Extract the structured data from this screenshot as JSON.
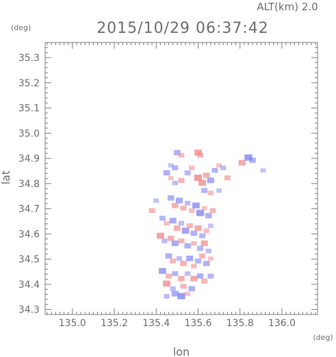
{
  "chart_data": {
    "type": "scatter",
    "title": "2015/10/29 06:37:42",
    "altitude_label": "ALT(km) 2.0",
    "xlabel": "lon",
    "ylabel": "lat",
    "x_unit": "(deg)",
    "y_unit": "(deg)",
    "xlim": [
      134.87,
      136.17
    ],
    "ylim": [
      34.28,
      35.36
    ],
    "x_ticks": [
      "135.0",
      "135.2",
      "135.4",
      "135.6",
      "135.8",
      "136.0"
    ],
    "y_ticks": [
      "34.3",
      "34.4",
      "34.5",
      "34.6",
      "34.7",
      "34.8",
      "34.9",
      "35.0",
      "35.1",
      "35.2",
      "35.3"
    ],
    "grid": false,
    "colors": {
      "axis": "#7a7a7a",
      "positive": "#f08a8a",
      "negative": "#8a8af2"
    },
    "points": [
      {
        "lon": 135.5,
        "lat": 34.92,
        "v": -0.6
      },
      {
        "lon": 135.52,
        "lat": 34.91,
        "v": 0.4
      },
      {
        "lon": 135.6,
        "lat": 34.92,
        "v": 0.8
      },
      {
        "lon": 135.61,
        "lat": 34.91,
        "v": 0.5
      },
      {
        "lon": 135.47,
        "lat": 34.87,
        "v": -0.3
      },
      {
        "lon": 135.49,
        "lat": 34.86,
        "v": -0.5
      },
      {
        "lon": 135.45,
        "lat": 34.84,
        "v": -0.6
      },
      {
        "lon": 135.47,
        "lat": 34.82,
        "v": 0.3
      },
      {
        "lon": 135.49,
        "lat": 34.8,
        "v": -0.4
      },
      {
        "lon": 135.52,
        "lat": 34.81,
        "v": 0.5
      },
      {
        "lon": 135.55,
        "lat": 34.84,
        "v": -0.5
      },
      {
        "lon": 135.57,
        "lat": 34.86,
        "v": 0.4
      },
      {
        "lon": 135.6,
        "lat": 34.82,
        "v": 0.9
      },
      {
        "lon": 135.62,
        "lat": 34.8,
        "v": 0.8
      },
      {
        "lon": 135.64,
        "lat": 34.83,
        "v": 0.6
      },
      {
        "lon": 135.66,
        "lat": 34.81,
        "v": -0.7
      },
      {
        "lon": 135.68,
        "lat": 34.85,
        "v": -0.5
      },
      {
        "lon": 135.7,
        "lat": 34.87,
        "v": 0.3
      },
      {
        "lon": 135.72,
        "lat": 34.86,
        "v": -0.4
      },
      {
        "lon": 135.74,
        "lat": 34.82,
        "v": 0.5
      },
      {
        "lon": 135.63,
        "lat": 34.77,
        "v": -0.5
      },
      {
        "lon": 135.66,
        "lat": 34.76,
        "v": 0.4
      },
      {
        "lon": 135.7,
        "lat": 34.77,
        "v": -0.3
      },
      {
        "lon": 135.84,
        "lat": 34.9,
        "v": -0.9
      },
      {
        "lon": 135.86,
        "lat": 34.89,
        "v": -0.6
      },
      {
        "lon": 135.81,
        "lat": 34.88,
        "v": 0.7
      },
      {
        "lon": 135.91,
        "lat": 34.85,
        "v": -0.3
      },
      {
        "lon": 135.38,
        "lat": 34.69,
        "v": 0.5
      },
      {
        "lon": 135.4,
        "lat": 34.73,
        "v": -0.3
      },
      {
        "lon": 135.47,
        "lat": 34.74,
        "v": -0.6
      },
      {
        "lon": 135.49,
        "lat": 34.71,
        "v": 0.6
      },
      {
        "lon": 135.51,
        "lat": 34.73,
        "v": -0.7
      },
      {
        "lon": 135.53,
        "lat": 34.7,
        "v": 0.5
      },
      {
        "lon": 135.55,
        "lat": 34.72,
        "v": -0.4
      },
      {
        "lon": 135.57,
        "lat": 34.69,
        "v": 0.4
      },
      {
        "lon": 135.59,
        "lat": 34.71,
        "v": -0.8
      },
      {
        "lon": 135.61,
        "lat": 34.68,
        "v": -0.9
      },
      {
        "lon": 135.63,
        "lat": 34.7,
        "v": 0.3
      },
      {
        "lon": 135.65,
        "lat": 34.67,
        "v": -0.6
      },
      {
        "lon": 135.67,
        "lat": 34.69,
        "v": 0.5
      },
      {
        "lon": 135.43,
        "lat": 34.66,
        "v": -0.5
      },
      {
        "lon": 135.45,
        "lat": 34.64,
        "v": 0.4
      },
      {
        "lon": 135.48,
        "lat": 34.65,
        "v": -0.7
      },
      {
        "lon": 135.5,
        "lat": 34.62,
        "v": 0.6
      },
      {
        "lon": 135.52,
        "lat": 34.64,
        "v": -0.4
      },
      {
        "lon": 135.54,
        "lat": 34.61,
        "v": -0.8
      },
      {
        "lon": 135.56,
        "lat": 34.63,
        "v": 0.5
      },
      {
        "lon": 135.58,
        "lat": 34.6,
        "v": -0.6
      },
      {
        "lon": 135.6,
        "lat": 34.62,
        "v": 0.7
      },
      {
        "lon": 135.62,
        "lat": 34.59,
        "v": -0.5
      },
      {
        "lon": 135.64,
        "lat": 34.61,
        "v": 0.4
      },
      {
        "lon": 135.66,
        "lat": 34.63,
        "v": -0.3
      },
      {
        "lon": 135.42,
        "lat": 34.59,
        "v": 0.8
      },
      {
        "lon": 135.44,
        "lat": 34.57,
        "v": -0.4
      },
      {
        "lon": 135.47,
        "lat": 34.58,
        "v": 0.6
      },
      {
        "lon": 135.49,
        "lat": 34.56,
        "v": -0.7
      },
      {
        "lon": 135.52,
        "lat": 34.57,
        "v": 0.5
      },
      {
        "lon": 135.55,
        "lat": 34.55,
        "v": -0.6
      },
      {
        "lon": 135.58,
        "lat": 34.56,
        "v": 0.4
      },
      {
        "lon": 135.61,
        "lat": 34.54,
        "v": -0.5
      },
      {
        "lon": 135.63,
        "lat": 34.56,
        "v": 0.7
      },
      {
        "lon": 135.65,
        "lat": 34.53,
        "v": -0.4
      },
      {
        "lon": 135.46,
        "lat": 34.51,
        "v": -0.6
      },
      {
        "lon": 135.48,
        "lat": 34.49,
        "v": 0.5
      },
      {
        "lon": 135.51,
        "lat": 34.5,
        "v": -0.4
      },
      {
        "lon": 135.53,
        "lat": 34.48,
        "v": 0.6
      },
      {
        "lon": 135.56,
        "lat": 34.5,
        "v": -0.7
      },
      {
        "lon": 135.58,
        "lat": 34.47,
        "v": 0.4
      },
      {
        "lon": 135.6,
        "lat": 34.49,
        "v": -0.5
      },
      {
        "lon": 135.62,
        "lat": 34.51,
        "v": 0.5
      },
      {
        "lon": 135.64,
        "lat": 34.48,
        "v": -0.6
      },
      {
        "lon": 135.66,
        "lat": 34.5,
        "v": 0.3
      },
      {
        "lon": 135.43,
        "lat": 34.45,
        "v": -0.8
      },
      {
        "lon": 135.46,
        "lat": 34.43,
        "v": 0.5
      },
      {
        "lon": 135.49,
        "lat": 34.44,
        "v": -0.5
      },
      {
        "lon": 135.52,
        "lat": 34.42,
        "v": 0.6
      },
      {
        "lon": 135.55,
        "lat": 34.44,
        "v": -0.4
      },
      {
        "lon": 135.58,
        "lat": 34.42,
        "v": 0.7
      },
      {
        "lon": 135.61,
        "lat": 34.43,
        "v": -0.6
      },
      {
        "lon": 135.63,
        "lat": 34.41,
        "v": 0.5
      },
      {
        "lon": 135.66,
        "lat": 34.43,
        "v": -0.5
      },
      {
        "lon": 135.45,
        "lat": 34.4,
        "v": 0.8
      },
      {
        "lon": 135.48,
        "lat": 34.38,
        "v": -0.4
      },
      {
        "lon": 135.53,
        "lat": 34.39,
        "v": 0.5
      },
      {
        "lon": 135.57,
        "lat": 34.38,
        "v": -0.6
      },
      {
        "lon": 135.45,
        "lat": 34.35,
        "v": -0.4
      },
      {
        "lon": 135.49,
        "lat": 34.36,
        "v": -0.7
      },
      {
        "lon": 135.52,
        "lat": 34.35,
        "v": -0.9
      },
      {
        "lon": 135.55,
        "lat": 34.36,
        "v": 0.3
      }
    ]
  }
}
